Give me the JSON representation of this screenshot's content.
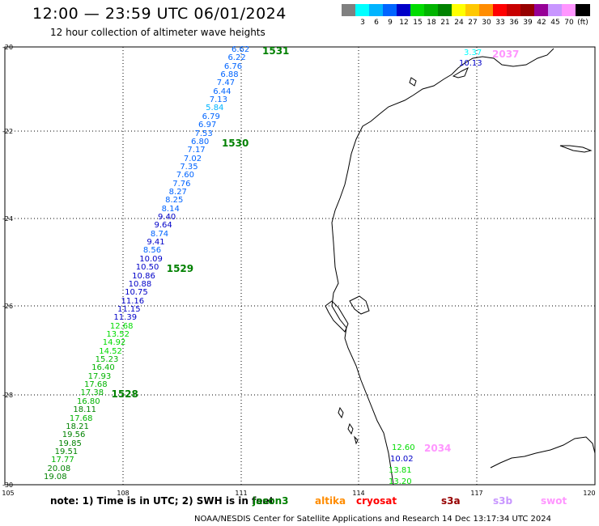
{
  "title": "12:00 — 23:59 UTC 06/01/2024",
  "subtitle": "12 hour collection of altimeter wave heights",
  "scale": {
    "unit": "(ft)",
    "levels": [
      {
        "label": "",
        "color": "#808080"
      },
      {
        "label": "3",
        "color": "#00ffff"
      },
      {
        "label": "6",
        "color": "#00b4ff"
      },
      {
        "label": "9",
        "color": "#0064ff"
      },
      {
        "label": "12",
        "color": "#0000c8"
      },
      {
        "label": "15",
        "color": "#00dc00"
      },
      {
        "label": "18",
        "color": "#00b400"
      },
      {
        "label": "21",
        "color": "#008200"
      },
      {
        "label": "24",
        "color": "#ffff00"
      },
      {
        "label": "27",
        "color": "#ffc800"
      },
      {
        "label": "30",
        "color": "#ff8c00"
      },
      {
        "label": "33",
        "color": "#ff0000"
      },
      {
        "label": "36",
        "color": "#c80000"
      },
      {
        "label": "39",
        "color": "#960000"
      },
      {
        "label": "42",
        "color": "#960096"
      },
      {
        "label": "45",
        "color": "#c896ff"
      },
      {
        "label": "70",
        "color": "#ff96ff"
      },
      {
        "label": "",
        "color": "#000000"
      }
    ]
  },
  "axes": {
    "x_ticks": [
      "105",
      "108",
      "111",
      "114",
      "117",
      "120"
    ],
    "y_ticks": [
      "-20",
      "-22",
      "-24",
      "-26",
      "-28",
      "-30"
    ]
  },
  "track_west": {
    "values": [
      "6.62",
      "6.22",
      "6.76",
      "6.88",
      "7.47",
      "6.44",
      "7.13",
      "5.84",
      "6.79",
      "6.97",
      "7.53",
      "6.80",
      "7.17",
      "7.02",
      "7.35",
      "7.60",
      "7.76",
      "8.27",
      "8.25",
      "8.14",
      "9.40",
      "9.64",
      "8.74",
      "9.41",
      "8.56",
      "10.09",
      "10.50",
      "10.86",
      "10.88",
      "10.75",
      "11.16",
      "11.15",
      "11.39",
      "12.68",
      "13.52",
      "14.92",
      "14.52",
      "15.23",
      "16.40",
      "17.93",
      "17.68",
      "17.38",
      "16.80",
      "18.11",
      "17.68",
      "18.21",
      "19.56",
      "19.85",
      "19.51",
      "17.77",
      "20.08",
      "19.08"
    ],
    "times": [
      {
        "label": "1531",
        "index": 0
      },
      {
        "label": "1530",
        "index": 11
      },
      {
        "label": "1529",
        "index": 26
      },
      {
        "label": "1528",
        "index": 41
      }
    ]
  },
  "track_east_north": {
    "values": [
      "3.37",
      "10.13"
    ],
    "time": "2037",
    "colors": [
      "#00ffff",
      "#0000c8"
    ]
  },
  "track_east_south": {
    "values": [
      "12.60",
      "10.02",
      "13.81",
      "13.20"
    ],
    "time": "2034",
    "colors": [
      "#00dc00",
      "#0000c8",
      "#00dc00",
      "#00dc00"
    ]
  },
  "notes": {
    "prefix": "note:  1) Time is in UTC; 2) SWH is in feet",
    "satellites": [
      {
        "name": "jason3",
        "color": "#008000"
      },
      {
        "name": "altika",
        "color": "#ff8c00"
      },
      {
        "name": "cryosat",
        "color": "#ff0000"
      },
      {
        "name": "s3a",
        "color": "#960000"
      },
      {
        "name": "s3b",
        "color": "#c896ff"
      },
      {
        "name": "swot",
        "color": "#ff96ff"
      }
    ]
  },
  "footer": "NOAA/NESDIS Center for Satellite Applications and Research    14 Dec 13:17:34 UTC 2024"
}
